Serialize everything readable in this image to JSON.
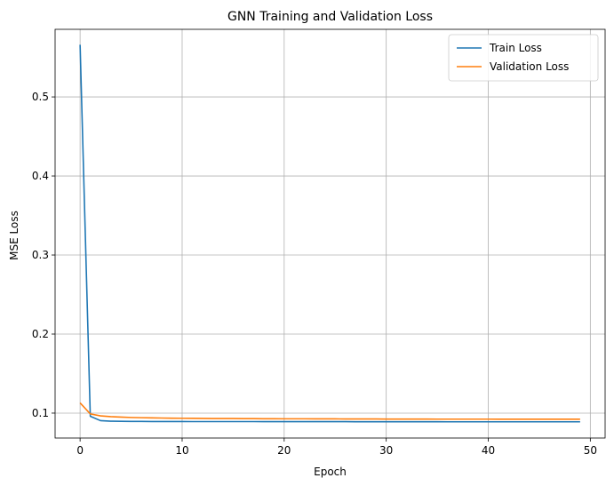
{
  "chart_data": {
    "type": "line",
    "title": "GNN Training and Validation Loss",
    "xlabel": "Epoch",
    "ylabel": "MSE Loss",
    "xlim": [
      -2.45,
      51.45
    ],
    "ylim": [
      0.0685,
      0.5855
    ],
    "xticks": [
      0,
      10,
      20,
      30,
      40,
      50
    ],
    "yticks": [
      0.1,
      0.2,
      0.3,
      0.4,
      0.5
    ],
    "grid": true,
    "legend_position": "top-right",
    "x": [
      0,
      1,
      2,
      3,
      4,
      5,
      6,
      7,
      8,
      9,
      10,
      11,
      12,
      13,
      14,
      15,
      16,
      17,
      18,
      19,
      20,
      21,
      22,
      23,
      24,
      25,
      26,
      27,
      28,
      29,
      30,
      31,
      32,
      33,
      34,
      35,
      36,
      37,
      38,
      39,
      40,
      41,
      42,
      43,
      44,
      45,
      46,
      47,
      48,
      49
    ],
    "series": [
      {
        "name": "Train Loss",
        "color": "#1f77b4",
        "values": [
          0.566,
          0.096,
          0.0905,
          0.0898,
          0.0896,
          0.0895,
          0.0895,
          0.0894,
          0.0894,
          0.0894,
          0.0894,
          0.0893,
          0.0893,
          0.0893,
          0.0893,
          0.0893,
          0.0893,
          0.0893,
          0.0892,
          0.0892,
          0.0892,
          0.0892,
          0.0892,
          0.0892,
          0.0892,
          0.0892,
          0.0892,
          0.0891,
          0.0891,
          0.0891,
          0.0891,
          0.0891,
          0.0891,
          0.0891,
          0.0891,
          0.0891,
          0.089,
          0.089,
          0.089,
          0.089,
          0.089,
          0.089,
          0.089,
          0.089,
          0.089,
          0.089,
          0.089,
          0.089,
          0.089,
          0.089
        ]
      },
      {
        "name": "Validation Loss",
        "color": "#ff7f0e",
        "values": [
          0.113,
          0.099,
          0.0965,
          0.0955,
          0.095,
          0.0945,
          0.0942,
          0.094,
          0.0938,
          0.0936,
          0.0935,
          0.0934,
          0.0933,
          0.0932,
          0.0931,
          0.0931,
          0.093,
          0.093,
          0.0929,
          0.0929,
          0.0928,
          0.0928,
          0.0928,
          0.0927,
          0.0927,
          0.0927,
          0.0926,
          0.0926,
          0.0926,
          0.0926,
          0.0925,
          0.0925,
          0.0925,
          0.0925,
          0.0925,
          0.0924,
          0.0924,
          0.0924,
          0.0924,
          0.0924,
          0.0924,
          0.0923,
          0.0923,
          0.0923,
          0.0923,
          0.0923,
          0.0923,
          0.0923,
          0.0923,
          0.0923
        ]
      }
    ]
  }
}
